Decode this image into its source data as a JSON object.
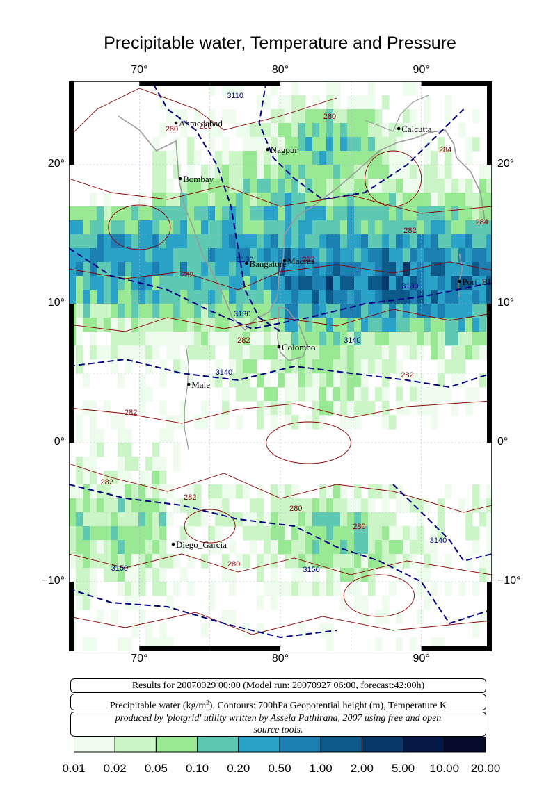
{
  "title": "Precipitable water, Temperature and Pressure",
  "axes": {
    "lon_range": [
      65,
      95
    ],
    "lat_range": [
      -15,
      26
    ],
    "lon_ticks": [
      {
        "v": 70,
        "label": "70°"
      },
      {
        "v": 80,
        "label": "80°"
      },
      {
        "v": 90,
        "label": "90°"
      }
    ],
    "lat_ticks": [
      {
        "v": 20,
        "label": "20°"
      },
      {
        "v": 10,
        "label": "10°"
      },
      {
        "v": 0,
        "label": "0°"
      },
      {
        "v": -10,
        "label": "−10°"
      }
    ]
  },
  "cities": [
    {
      "name": "Ahmedabad",
      "lon": 72.6,
      "lat": 23.0
    },
    {
      "name": "Bombay",
      "lon": 72.9,
      "lat": 19.0
    },
    {
      "name": "Nagpur",
      "lon": 79.1,
      "lat": 21.1
    },
    {
      "name": "Calcutta",
      "lon": 88.4,
      "lat": 22.6
    },
    {
      "name": "Bangalore",
      "lon": 77.6,
      "lat": 12.9
    },
    {
      "name": "Madras",
      "lon": 80.3,
      "lat": 13.1
    },
    {
      "name": "Port_Blair",
      "lon": 92.7,
      "lat": 11.6
    },
    {
      "name": "Colombo",
      "lon": 79.9,
      "lat": 6.9
    },
    {
      "name": "Male",
      "lon": 73.5,
      "lat": 4.2
    },
    {
      "name": "Diego_Garcia",
      "lon": 72.4,
      "lat": -7.3
    }
  ],
  "contour_labels": [
    {
      "text": "280",
      "lon": 72.3,
      "lat": 22.4,
      "color": "#8b0000"
    },
    {
      "text": "280",
      "lon": 74.7,
      "lat": 22.6,
      "color": "#8b0000"
    },
    {
      "text": "3110",
      "lon": 76.8,
      "lat": 24.8,
      "color": "#000080"
    },
    {
      "text": "280",
      "lon": 83.5,
      "lat": 23.3,
      "color": "#8b0000"
    },
    {
      "text": "284",
      "lon": 91.7,
      "lat": 20.9,
      "color": "#8b0000"
    },
    {
      "text": "284",
      "lon": 94.3,
      "lat": 15.7,
      "color": "#8b0000"
    },
    {
      "text": "282",
      "lon": 89.2,
      "lat": 15.1,
      "color": "#8b0000"
    },
    {
      "text": "3130",
      "lon": 77.5,
      "lat": 13.0,
      "color": "#000080"
    },
    {
      "text": "282",
      "lon": 82.0,
      "lat": 13.0,
      "color": "#8b0000"
    },
    {
      "text": "282",
      "lon": 73.4,
      "lat": 11.9,
      "color": "#8b0000"
    },
    {
      "text": "3130",
      "lon": 89.2,
      "lat": 11.1,
      "color": "#000080"
    },
    {
      "text": "3130",
      "lon": 77.3,
      "lat": 9.1,
      "color": "#000080"
    },
    {
      "text": "282",
      "lon": 77.4,
      "lat": 7.2,
      "color": "#8b0000"
    },
    {
      "text": "3140",
      "lon": 85.1,
      "lat": 7.2,
      "color": "#000080"
    },
    {
      "text": "3140",
      "lon": 76.0,
      "lat": 4.9,
      "color": "#000080"
    },
    {
      "text": "282",
      "lon": 89.0,
      "lat": 4.7,
      "color": "#8b0000"
    },
    {
      "text": "282",
      "lon": 69.4,
      "lat": 2.0,
      "color": "#8b0000"
    },
    {
      "text": "282",
      "lon": 67.7,
      "lat": -3.0,
      "color": "#8b0000"
    },
    {
      "text": "282",
      "lon": 73.6,
      "lat": -4.1,
      "color": "#8b0000"
    },
    {
      "text": "280",
      "lon": 81.1,
      "lat": -4.9,
      "color": "#8b0000"
    },
    {
      "text": "280",
      "lon": 85.6,
      "lat": -6.2,
      "color": "#8b0000"
    },
    {
      "text": "3140",
      "lon": 91.2,
      "lat": -7.2,
      "color": "#000080"
    },
    {
      "text": "280",
      "lon": 76.7,
      "lat": -8.9,
      "color": "#8b0000"
    },
    {
      "text": "3150",
      "lon": 82.2,
      "lat": -9.3,
      "color": "#000080"
    },
    {
      "text": "3150",
      "lon": 68.6,
      "lat": -9.2,
      "color": "#000080"
    }
  ],
  "info": {
    "line1": "Results for 20070929 00:00 (Model run: 20070927 06:00, forecast:42:00h)",
    "line2_prefix": "Precipitable water (kg/m",
    "line2_sup": "2",
    "line2_suffix": ").  Contours: 700hPa Geopotential height (m), Temperature K",
    "line3a": "produced by 'plotgrid' utility written by Assela Pathirana, 2007 using free and open",
    "line3b": "source tools."
  },
  "colorbar": {
    "labels": [
      "0.01",
      "0.02",
      "0.05",
      "0.10",
      "0.20",
      "0.50",
      "1.00",
      "2.00",
      "5.00",
      "10.00",
      "20.00"
    ],
    "colors": [
      "#eefcee",
      "#cbf5c6",
      "#98e894",
      "#5fc8b3",
      "#2aa2c8",
      "#1b7fb2",
      "#0d5a8a",
      "#08376a",
      "#061848",
      "#030a2a"
    ]
  },
  "colors": {
    "temp_contour": "#8b0000",
    "height_contour": "#000080",
    "coast": "#9a9a9a",
    "grid": "#b0b0d0"
  }
}
